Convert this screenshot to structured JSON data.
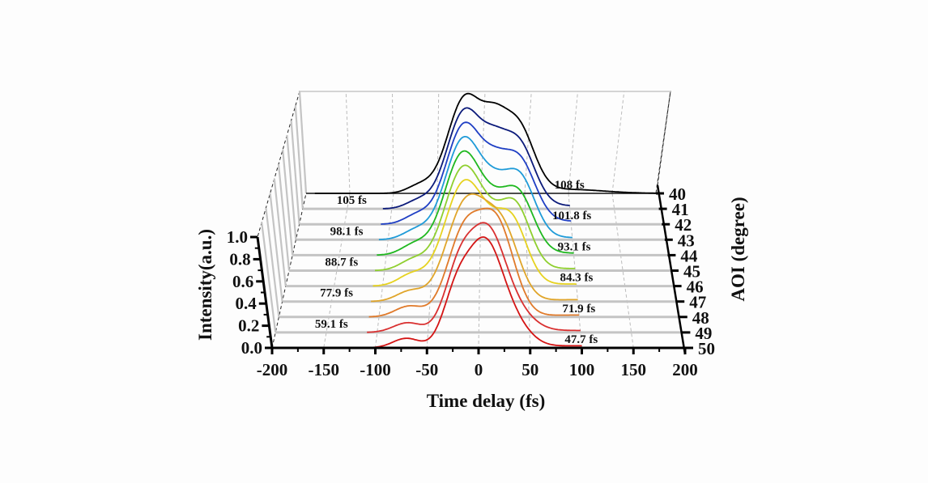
{
  "chart_data": {
    "type": "line",
    "style": "3d-waterfall",
    "title": "",
    "xlabel": "Time delay (fs)",
    "ylabel": "AOI (degree)",
    "zlabel": "Intensity(a.u.)",
    "xlim": [
      -200,
      200
    ],
    "ylim": [
      40,
      50
    ],
    "zlim": [
      0,
      1.0
    ],
    "x_ticks": [
      "-200",
      "-150",
      "-100",
      "-50",
      "0",
      "50",
      "100",
      "150",
      "200"
    ],
    "y_ticks": [
      "40",
      "41",
      "42",
      "43",
      "44",
      "45",
      "46",
      "47",
      "48",
      "49",
      "50"
    ],
    "z_ticks": [
      "0.0",
      "0.2",
      "0.4",
      "0.6",
      "0.8",
      "1.0"
    ],
    "grid": true,
    "series": [
      {
        "name": "AOI 40",
        "aoi": 40,
        "fwhm_label": "108 fs",
        "label_side": "right",
        "color": "#000000",
        "peaks": [
          [
            -70,
            0.08,
            14
          ],
          [
            -18,
            0.98,
            20
          ],
          [
            42,
            0.68,
            18
          ],
          [
            15,
            0.45,
            14
          ],
          [
            100,
            0.04,
            40
          ]
        ]
      },
      {
        "name": "AOI 41",
        "aoi": 41,
        "fwhm_label": "105 fs",
        "label_side": "left",
        "color": "#0b1a7a",
        "peaks": [
          [
            -70,
            0.08,
            14
          ],
          [
            -18,
            1.0,
            20
          ],
          [
            42,
            0.66,
            18
          ],
          [
            15,
            0.38,
            14
          ],
          [
            100,
            0.03,
            40
          ]
        ]
      },
      {
        "name": "AOI 42",
        "aoi": 42,
        "fwhm_label": "101.8 fs",
        "label_side": "right",
        "color": "#1f3fc4",
        "peaks": [
          [
            -70,
            0.09,
            14
          ],
          [
            -18,
            1.0,
            20
          ],
          [
            42,
            0.64,
            18
          ],
          [
            15,
            0.32,
            14
          ],
          [
            100,
            0.03,
            40
          ]
        ]
      },
      {
        "name": "AOI 43",
        "aoi": 43,
        "fwhm_label": "98.1 fs",
        "label_side": "left",
        "color": "#1f9bd8",
        "peaks": [
          [
            -70,
            0.09,
            14
          ],
          [
            -18,
            1.0,
            20
          ],
          [
            42,
            0.62,
            17
          ],
          [
            15,
            0.28,
            14
          ],
          [
            100,
            0.02,
            40
          ]
        ]
      },
      {
        "name": "AOI 44",
        "aoi": 44,
        "fwhm_label": "93.1 fs",
        "label_side": "right",
        "color": "#1fb81f",
        "peaks": [
          [
            -70,
            0.1,
            14
          ],
          [
            -18,
            1.0,
            20
          ],
          [
            40,
            0.6,
            17
          ],
          [
            14,
            0.22,
            14
          ],
          [
            100,
            0.02,
            40
          ]
        ]
      },
      {
        "name": "AOI 45",
        "aoi": 45,
        "fwhm_label": "88.7 fs",
        "label_side": "left",
        "color": "#8fcf2f",
        "peaks": [
          [
            -70,
            0.1,
            14
          ],
          [
            -17,
            1.0,
            20
          ],
          [
            37,
            0.62,
            16
          ],
          [
            12,
            0.18,
            14
          ],
          [
            100,
            0.02,
            40
          ]
        ]
      },
      {
        "name": "AOI 46",
        "aoi": 46,
        "fwhm_label": "84.3 fs",
        "label_side": "right",
        "color": "#e6d21f",
        "peaks": [
          [
            -70,
            0.11,
            14
          ],
          [
            -16,
            1.0,
            20
          ],
          [
            33,
            0.62,
            16
          ],
          [
            10,
            0.15,
            14
          ],
          [
            100,
            0.02,
            40
          ]
        ]
      },
      {
        "name": "AOI 47",
        "aoi": 47,
        "fwhm_label": "77.9 fs",
        "label_side": "left",
        "color": "#e0a52a",
        "peaks": [
          [
            -70,
            0.11,
            14
          ],
          [
            -15,
            1.0,
            19
          ],
          [
            25,
            0.7,
            16
          ],
          [
            5,
            0.2,
            14
          ],
          [
            100,
            0.02,
            40
          ]
        ]
      },
      {
        "name": "AOI 48",
        "aoi": 48,
        "fwhm_label": "71.9 fs",
        "label_side": "right",
        "color": "#e07a2a",
        "peaks": [
          [
            -70,
            0.11,
            14
          ],
          [
            -15,
            0.85,
            17
          ],
          [
            18,
            0.92,
            17
          ],
          [
            100,
            0.02,
            40
          ]
        ]
      },
      {
        "name": "AOI 49",
        "aoi": 49,
        "fwhm_label": "59.1 fs",
        "label_side": "left",
        "color": "#d93030",
        "peaks": [
          [
            -70,
            0.1,
            14
          ],
          [
            -20,
            0.6,
            14
          ],
          [
            8,
            0.98,
            17
          ],
          [
            35,
            0.2,
            18
          ],
          [
            100,
            0.02,
            40
          ]
        ]
      },
      {
        "name": "AOI 50",
        "aoi": 50,
        "fwhm_label": "47.7 fs",
        "label_side": "right",
        "color": "#d41414",
        "peaks": [
          [
            -70,
            0.09,
            13
          ],
          [
            -22,
            0.45,
            13
          ],
          [
            6,
            0.96,
            17
          ],
          [
            35,
            0.18,
            16
          ],
          [
            100,
            0.02,
            40
          ]
        ]
      }
    ]
  }
}
